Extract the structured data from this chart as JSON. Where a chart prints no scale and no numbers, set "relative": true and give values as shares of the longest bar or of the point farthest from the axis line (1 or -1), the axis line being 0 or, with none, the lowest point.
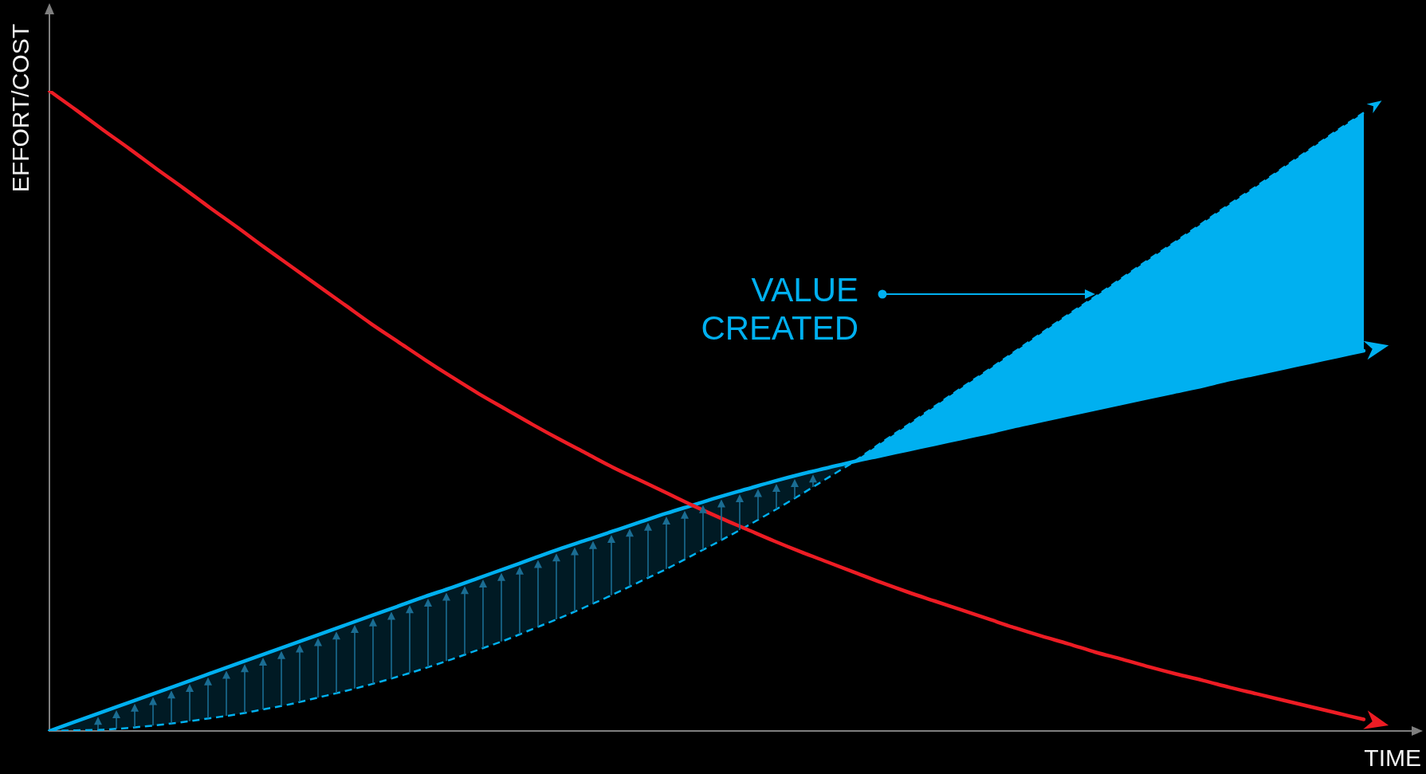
{
  "chart_data": {
    "type": "line",
    "relative": true,
    "xlabel": "TIME",
    "ylabel": "EFFORT/COST",
    "tick_labels": false,
    "categories": [
      null,
      null,
      null,
      null,
      null,
      null,
      null,
      null,
      null,
      null,
      null,
      null,
      null,
      null,
      null,
      null,
      null,
      null,
      null,
      null,
      null,
      null,
      null,
      null,
      null,
      null,
      null,
      null,
      null,
      null,
      null,
      null,
      null,
      null,
      null,
      null,
      null,
      null,
      null,
      null,
      null,
      null,
      null,
      null,
      null,
      null,
      null,
      null,
      null,
      null
    ],
    "series": [
      {
        "color": "#ed1c24",
        "values": [
          1.0,
          0.97,
          0.939,
          0.909,
          0.878,
          0.848,
          0.817,
          0.787,
          0.756,
          0.726,
          0.696,
          0.666,
          0.636,
          0.608,
          0.58,
          0.553,
          0.527,
          0.503,
          0.479,
          0.456,
          0.434,
          0.412,
          0.392,
          0.372,
          0.352,
          0.333,
          0.315,
          0.297,
          0.28,
          0.264,
          0.248,
          0.232,
          0.217,
          0.203,
          0.189,
          0.175,
          0.161,
          0.148,
          0.136,
          0.123,
          0.112,
          0.1,
          0.089,
          0.079,
          0.068,
          0.058,
          0.048,
          0.038,
          0.028,
          0.018
        ]
      },
      {
        "color": "#00b0f0",
        "values": [
          0,
          0.015,
          0.03,
          0.045,
          0.06,
          0.075,
          0.09,
          0.105,
          0.12,
          0.135,
          0.15,
          0.165,
          0.18,
          0.195,
          0.21,
          0.224,
          0.239,
          0.254,
          0.269,
          0.284,
          0.298,
          0.312,
          0.326,
          0.34,
          0.353,
          0.366,
          0.378,
          0.39,
          0.401,
          0.411,
          0.421,
          0.43,
          0.439,
          0.448,
          0.457,
          0.466,
          0.476,
          0.485,
          0.494,
          0.503,
          0.512,
          0.521,
          0.53,
          0.539,
          0.549,
          0.558,
          0.567,
          0.576,
          0.585,
          0.594
        ],
        "lower": [
          0,
          0.001,
          0.002,
          0.005,
          0.009,
          0.014,
          0.02,
          0.026,
          0.034,
          0.042,
          0.052,
          0.062,
          0.073,
          0.085,
          0.098,
          0.112,
          0.127,
          0.142,
          0.159,
          0.176,
          0.194,
          0.213,
          0.233,
          0.253,
          0.275,
          0.297,
          0.32,
          0.344,
          0.369,
          0.395,
          0.421,
          null,
          null,
          null,
          null,
          null,
          null,
          null,
          null,
          null,
          null,
          null,
          null,
          null,
          null,
          null,
          null,
          null,
          null,
          null
        ],
        "upper": [
          0,
          0.015,
          0.03,
          0.045,
          0.06,
          0.075,
          0.09,
          0.105,
          0.12,
          0.135,
          0.15,
          0.165,
          0.18,
          0.195,
          0.21,
          0.224,
          0.239,
          0.254,
          0.269,
          0.284,
          0.298,
          0.312,
          0.326,
          0.34,
          0.353,
          0.366,
          0.378,
          0.39,
          0.401,
          0.411,
          0.421,
          null,
          null,
          null,
          null,
          null,
          null,
          null,
          null,
          null,
          null,
          null,
          null,
          null,
          null,
          null,
          null,
          null,
          null,
          null
        ]
      },
      {
        "color": "#00b0f0",
        "line_style": "dashed",
        "values": [
          0,
          0.001,
          0.002,
          0.005,
          0.009,
          0.014,
          0.02,
          0.026,
          0.034,
          0.042,
          0.052,
          0.062,
          0.073,
          0.085,
          0.098,
          0.112,
          0.127,
          0.142,
          0.159,
          0.176,
          0.194,
          0.213,
          0.233,
          0.253,
          0.275,
          0.297,
          0.32,
          0.344,
          0.369,
          0.395,
          0.421,
          0.45,
          0.478,
          0.507,
          0.536,
          0.564,
          0.593,
          0.622,
          0.651,
          0.679,
          0.708,
          0.737,
          0.765,
          0.794,
          0.823,
          0.851,
          0.88,
          0.909,
          0.938,
          0.966
        ],
        "lower": [
          null,
          null,
          null,
          null,
          null,
          null,
          null,
          null,
          null,
          null,
          null,
          null,
          null,
          null,
          null,
          null,
          null,
          null,
          null,
          null,
          null,
          null,
          null,
          null,
          null,
          null,
          null,
          null,
          null,
          null,
          0.421,
          0.43,
          0.439,
          0.448,
          0.457,
          0.466,
          0.476,
          0.485,
          0.494,
          0.503,
          0.512,
          0.521,
          0.53,
          0.539,
          0.549,
          0.558,
          0.567,
          0.576,
          0.585,
          0.594
        ],
        "upper": [
          null,
          null,
          null,
          null,
          null,
          null,
          null,
          null,
          null,
          null,
          null,
          null,
          null,
          null,
          null,
          null,
          null,
          null,
          null,
          null,
          null,
          null,
          null,
          null,
          null,
          null,
          null,
          null,
          null,
          null,
          0.421,
          0.45,
          0.478,
          0.507,
          0.536,
          0.564,
          0.593,
          0.622,
          0.651,
          0.679,
          0.708,
          0.737,
          0.765,
          0.794,
          0.823,
          0.851,
          0.88,
          0.909,
          0.938,
          0.966
        ]
      }
    ],
    "annotations": [
      "VALUE CREATED"
    ]
  }
}
